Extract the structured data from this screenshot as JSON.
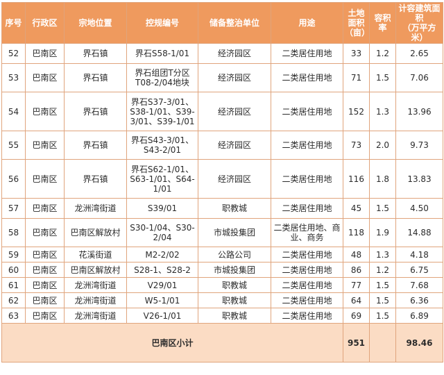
{
  "table": {
    "headers": [
      "序号",
      "行政区",
      "宗地位置",
      "控规编号",
      "储备整治单位",
      "用途",
      "土地\n面积\n（亩）",
      "容积率",
      "计容建筑面积\n（万平方米）"
    ],
    "rows": [
      {
        "no": "52",
        "district": "巴南区",
        "location": "界石镇",
        "code": "界石S58-1/01",
        "unit": "经济园区",
        "use": "二类居住用地",
        "area": "33",
        "far": "1.2",
        "gfa": "2.65"
      },
      {
        "no": "53",
        "district": "巴南区",
        "location": "界石镇",
        "code": "界石组团T分区\nT08-2/04地块",
        "unit": "经济园区",
        "use": "二类居住用地",
        "area": "71",
        "far": "1.5",
        "gfa": "7.06"
      },
      {
        "no": "54",
        "district": "巴南区",
        "location": "界石镇",
        "code": "界石S37-3/01、\nS38-1/01、S39-\n3/01、S39-1/01",
        "unit": "经济园区",
        "use": "二类居住用地",
        "area": "152",
        "far": "1.3",
        "gfa": "13.96"
      },
      {
        "no": "55",
        "district": "巴南区",
        "location": "界石镇",
        "code": "界石S43-3/01、\nS43-2/01",
        "unit": "经济园区",
        "use": "二类居住用地",
        "area": "73",
        "far": "2.0",
        "gfa": "9.73"
      },
      {
        "no": "56",
        "district": "巴南区",
        "location": "界石镇",
        "code": "界石S62-1/01、\nS63-1/01、S64-\n1/01",
        "unit": "经济园区",
        "use": "二类居住用地",
        "area": "116",
        "far": "1.8",
        "gfa": "13.83"
      },
      {
        "no": "57",
        "district": "巴南区",
        "location": "龙洲湾街道",
        "code": "S39/01",
        "unit": "职教城",
        "use": "二类居住用地",
        "area": "45",
        "far": "1.5",
        "gfa": "4.50"
      },
      {
        "no": "58",
        "district": "巴南区",
        "location": "巴南区解放村",
        "code": "S30-1/04、S30-\n2/04",
        "unit": "市城投集团",
        "use": "二类居住用地、商\n业、商务",
        "area": "118",
        "far": "1.9",
        "gfa": "14.88"
      },
      {
        "no": "59",
        "district": "巴南区",
        "location": "花溪街道",
        "code": "M2-2/02",
        "unit": "公路公司",
        "use": "二类居住用地",
        "area": "48",
        "far": "1.3",
        "gfa": "4.18"
      },
      {
        "no": "60",
        "district": "巴南区",
        "location": "巴南区解放村",
        "code": "S28-1、S28-2",
        "unit": "市城投集团",
        "use": "二类居住用地",
        "area": "86",
        "far": "1.2",
        "gfa": "6.75"
      },
      {
        "no": "61",
        "district": "巴南区",
        "location": "龙洲湾街道",
        "code": "V29/01",
        "unit": "职教城",
        "use": "二类居住用地",
        "area": "77",
        "far": "1.5",
        "gfa": "7.68"
      },
      {
        "no": "62",
        "district": "巴南区",
        "location": "龙洲湾街道",
        "code": "W5-1/01",
        "unit": "职教城",
        "use": "二类居住用地",
        "area": "64",
        "far": "1.5",
        "gfa": "6.36"
      },
      {
        "no": "63",
        "district": "巴南区",
        "location": "龙洲湾街道",
        "code": "V26-1/01",
        "unit": "职教城",
        "use": "二类居住用地",
        "area": "69",
        "far": "1.5",
        "gfa": "6.89"
      }
    ],
    "subtotal": {
      "label": "巴南区小计",
      "area": "951",
      "far": "",
      "gfa": "98.46"
    }
  },
  "colors": {
    "header_bg": "#ef9a5e",
    "footer_bg": "#fbdcc4",
    "border": "#e0a47c"
  }
}
